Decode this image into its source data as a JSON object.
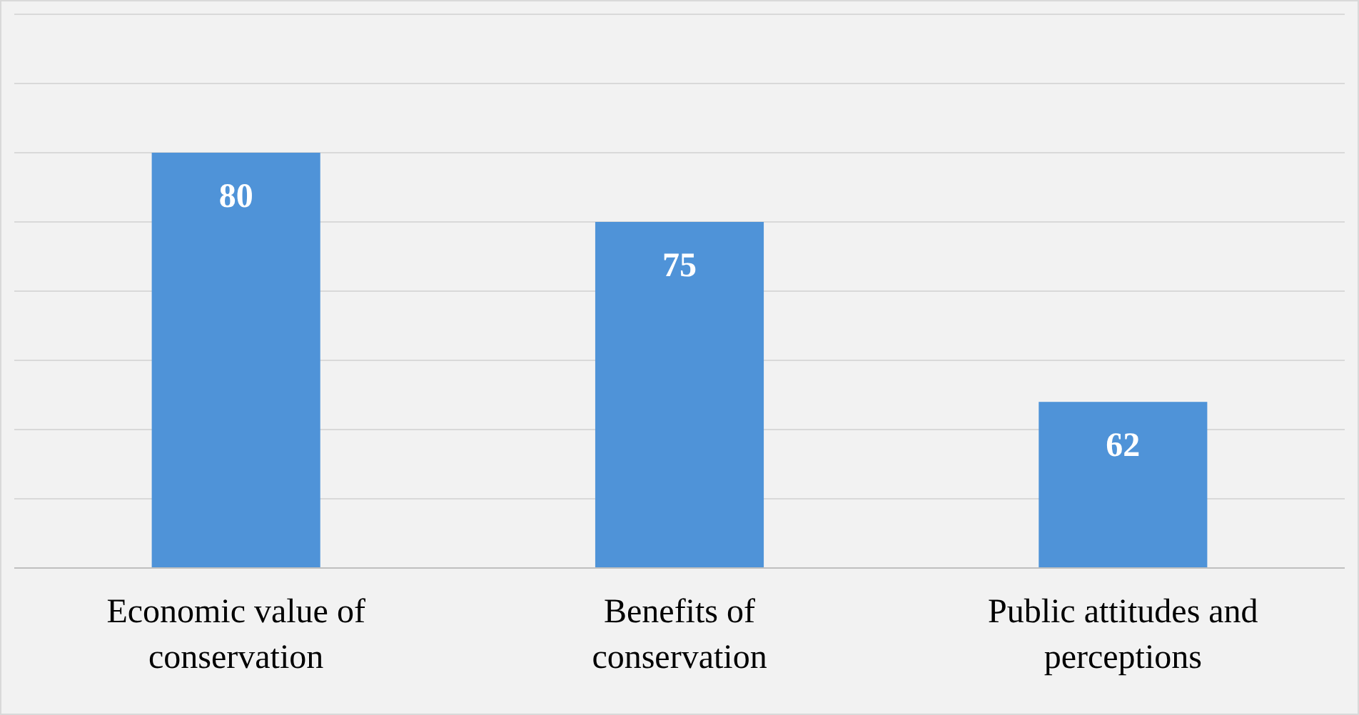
{
  "chart_data": {
    "type": "bar",
    "categories": [
      "Economic value of conservation",
      "Benefits of conservation",
      "Public attitudes and perceptions"
    ],
    "values": [
      80,
      75,
      62
    ],
    "color": "#4f93d8",
    "data_labels": true,
    "grid": "y",
    "ylim": [
      50,
      90
    ],
    "yticks": [
      {
        "value": 50,
        "label": null
      },
      {
        "value": 55,
        "label": null
      },
      {
        "value": 60,
        "label": null
      },
      {
        "value": 65,
        "label": null
      },
      {
        "value": 70,
        "label": null
      },
      {
        "value": 75,
        "label": null
      },
      {
        "value": 80,
        "label": null
      },
      {
        "value": 85,
        "label": null
      },
      {
        "value": 90,
        "label": null
      }
    ],
    "tick_labels": "x"
  }
}
